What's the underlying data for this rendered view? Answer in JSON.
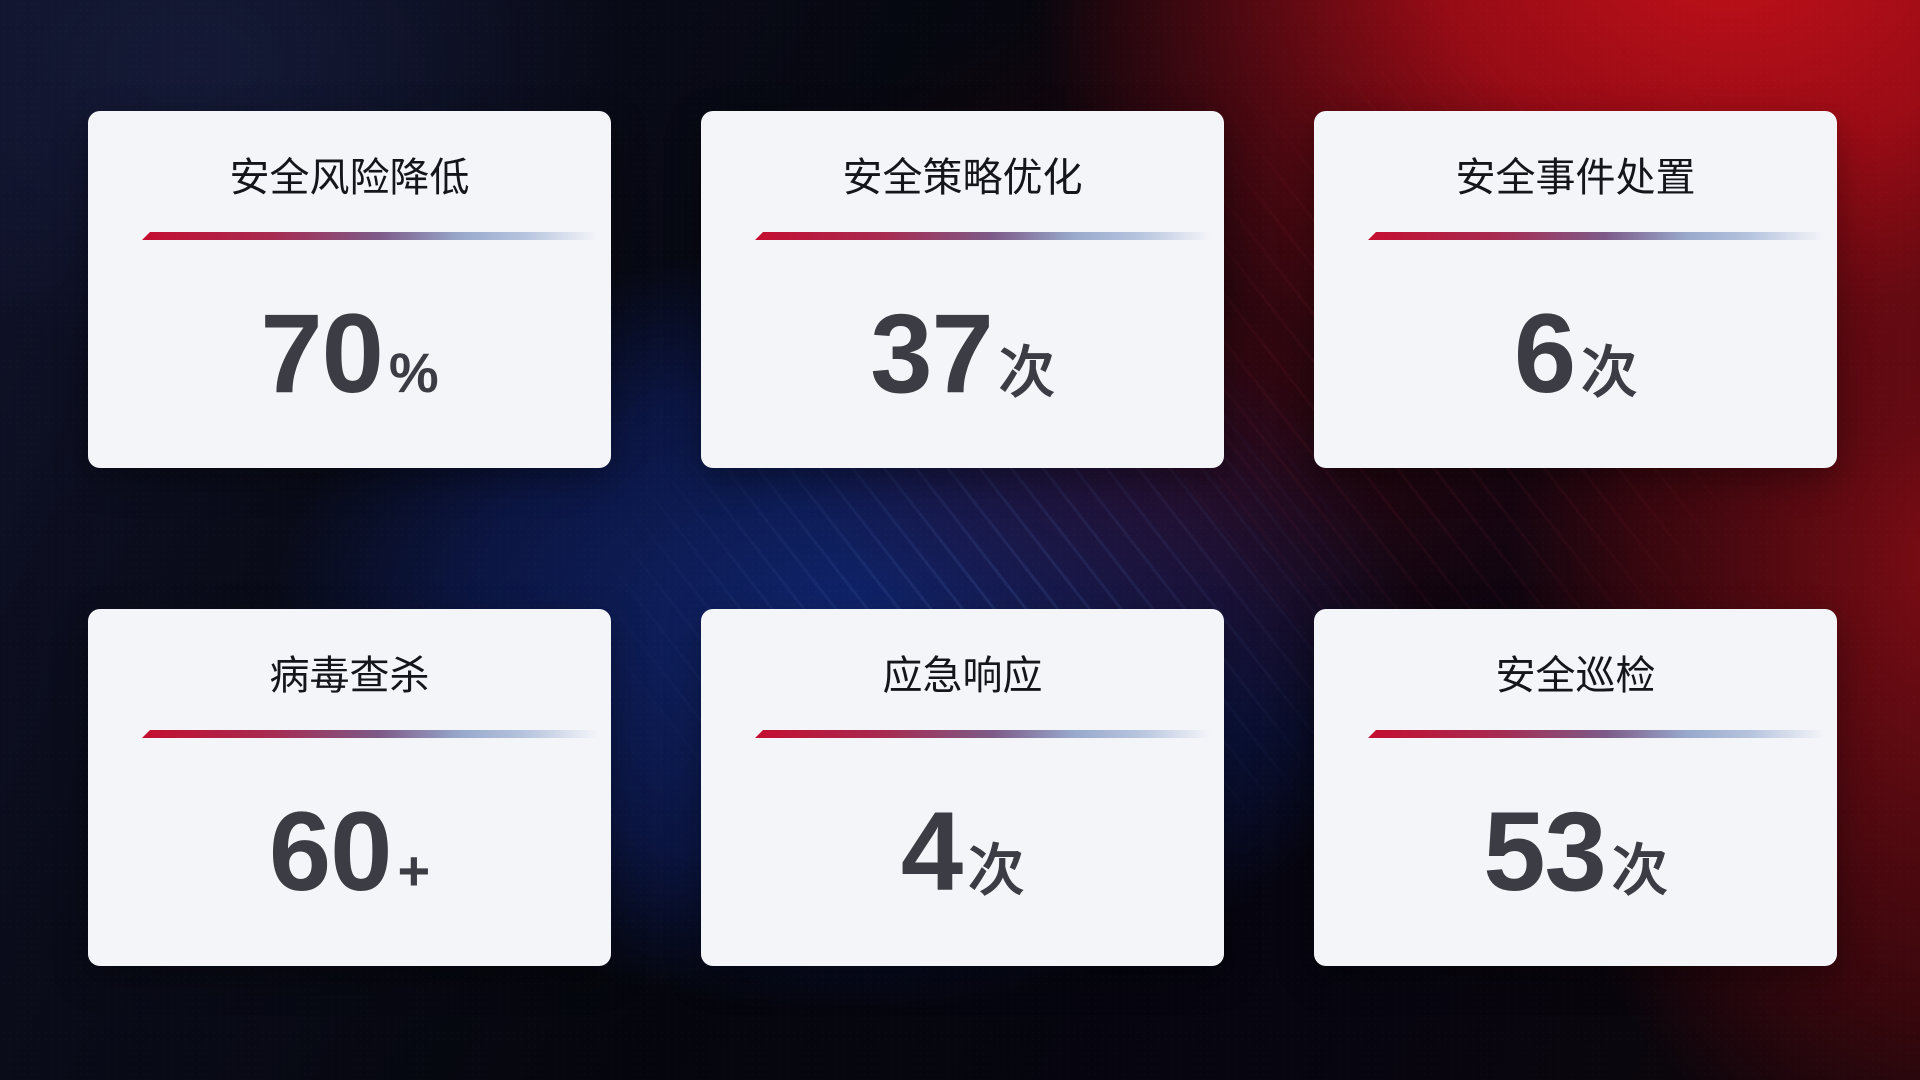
{
  "cards": [
    {
      "title": "安全风险降低",
      "value": "70",
      "unit": "%"
    },
    {
      "title": "安全策略优化",
      "value": "37",
      "unit": "次"
    },
    {
      "title": "安全事件处置",
      "value": "6",
      "unit": "次"
    },
    {
      "title": "病毒查杀",
      "value": "60",
      "unit": "+"
    },
    {
      "title": "应急响应",
      "value": "4",
      "unit": "次"
    },
    {
      "title": "安全巡检",
      "value": "53",
      "unit": "次"
    }
  ],
  "colors": {
    "card_background": "#f4f5f9",
    "title_text": "#15161c",
    "value_text": "#3c3d44",
    "divider_gradient_start": "#c40e31",
    "divider_gradient_mid": "#7d5a88",
    "divider_gradient_end": "#b6c4de",
    "bg_navy": "#141936",
    "bg_red_bright": "#c01019",
    "bg_blue": "#10246c"
  }
}
